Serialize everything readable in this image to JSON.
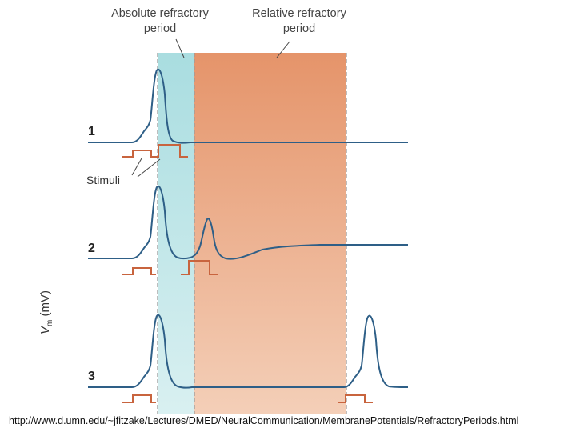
{
  "labels": {
    "absolute_refractory": "Absolute refractory\nperiod",
    "relative_refractory": "Relative refractory\nperiod",
    "stimuli": "Stimuli",
    "y_axis_main": "V",
    "y_axis_sub": "m",
    "y_axis_unit": "(mV)"
  },
  "traces": [
    {
      "number": "1"
    },
    {
      "number": "2"
    },
    {
      "number": "3"
    }
  ],
  "source_url": "http://www.d.umn.edu/~jfitzake/Lectures/DMED/NeuralCommunication/MembranePotentials/RefractoryPeriods.html",
  "colors": {
    "absolute_band": "#a9dde0",
    "relative_band_top": "#e5946a",
    "relative_band_bottom": "#f4cfb8",
    "trace": "#2e5f87",
    "stimulus": "#c8643e"
  }
}
